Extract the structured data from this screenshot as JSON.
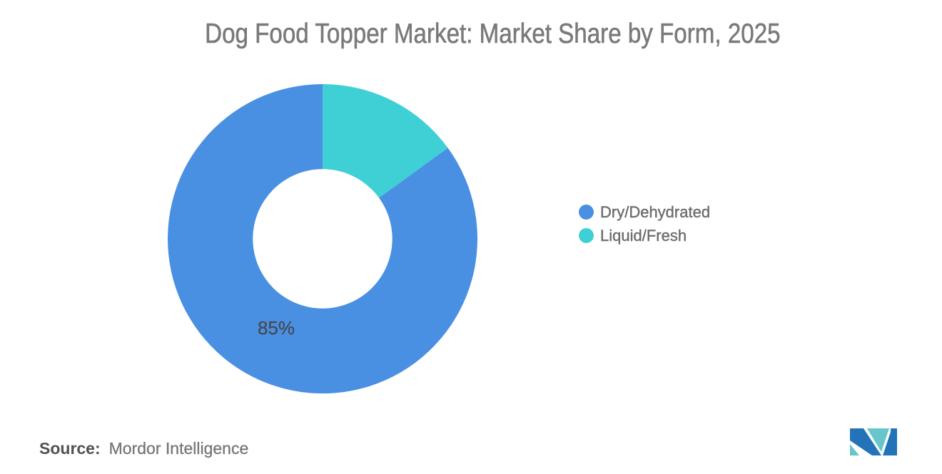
{
  "chart_data": {
    "type": "donut",
    "title": "Dog Food Topper Market: Market Share by Form, 2025",
    "unit": "%",
    "start_angle_deg": 0,
    "direction": "clockwise",
    "inner_radius_ratio": 0.45,
    "slices": [
      {
        "label": "Liquid/Fresh",
        "value": 15,
        "color": "#3FD0D6"
      },
      {
        "label": "Dry/Dehydrated",
        "value": 85,
        "color": "#4A90E2"
      }
    ],
    "data_labels": [
      {
        "text": "85%",
        "slice": "Dry/Dehydrated"
      }
    ],
    "legend": {
      "position": "right",
      "items": [
        {
          "label": "Dry/Dehydrated",
          "color": "#4A90E2"
        },
        {
          "label": "Liquid/Fresh",
          "color": "#3FD0D6"
        }
      ]
    }
  },
  "source": {
    "prefix": "Source:",
    "name": "Mordor Intelligence"
  },
  "logo": {
    "name": "mordor-intelligence-logo",
    "blue": "#2273B8",
    "teal": "#66C6CA"
  },
  "colors": {
    "background": "#FFFFFF",
    "title_text": "#7A7A7A",
    "legend_text": "#6D6D6D",
    "data_label_text": "#454A54",
    "source_prefix_text": "#515151",
    "source_name_text": "#767676"
  }
}
